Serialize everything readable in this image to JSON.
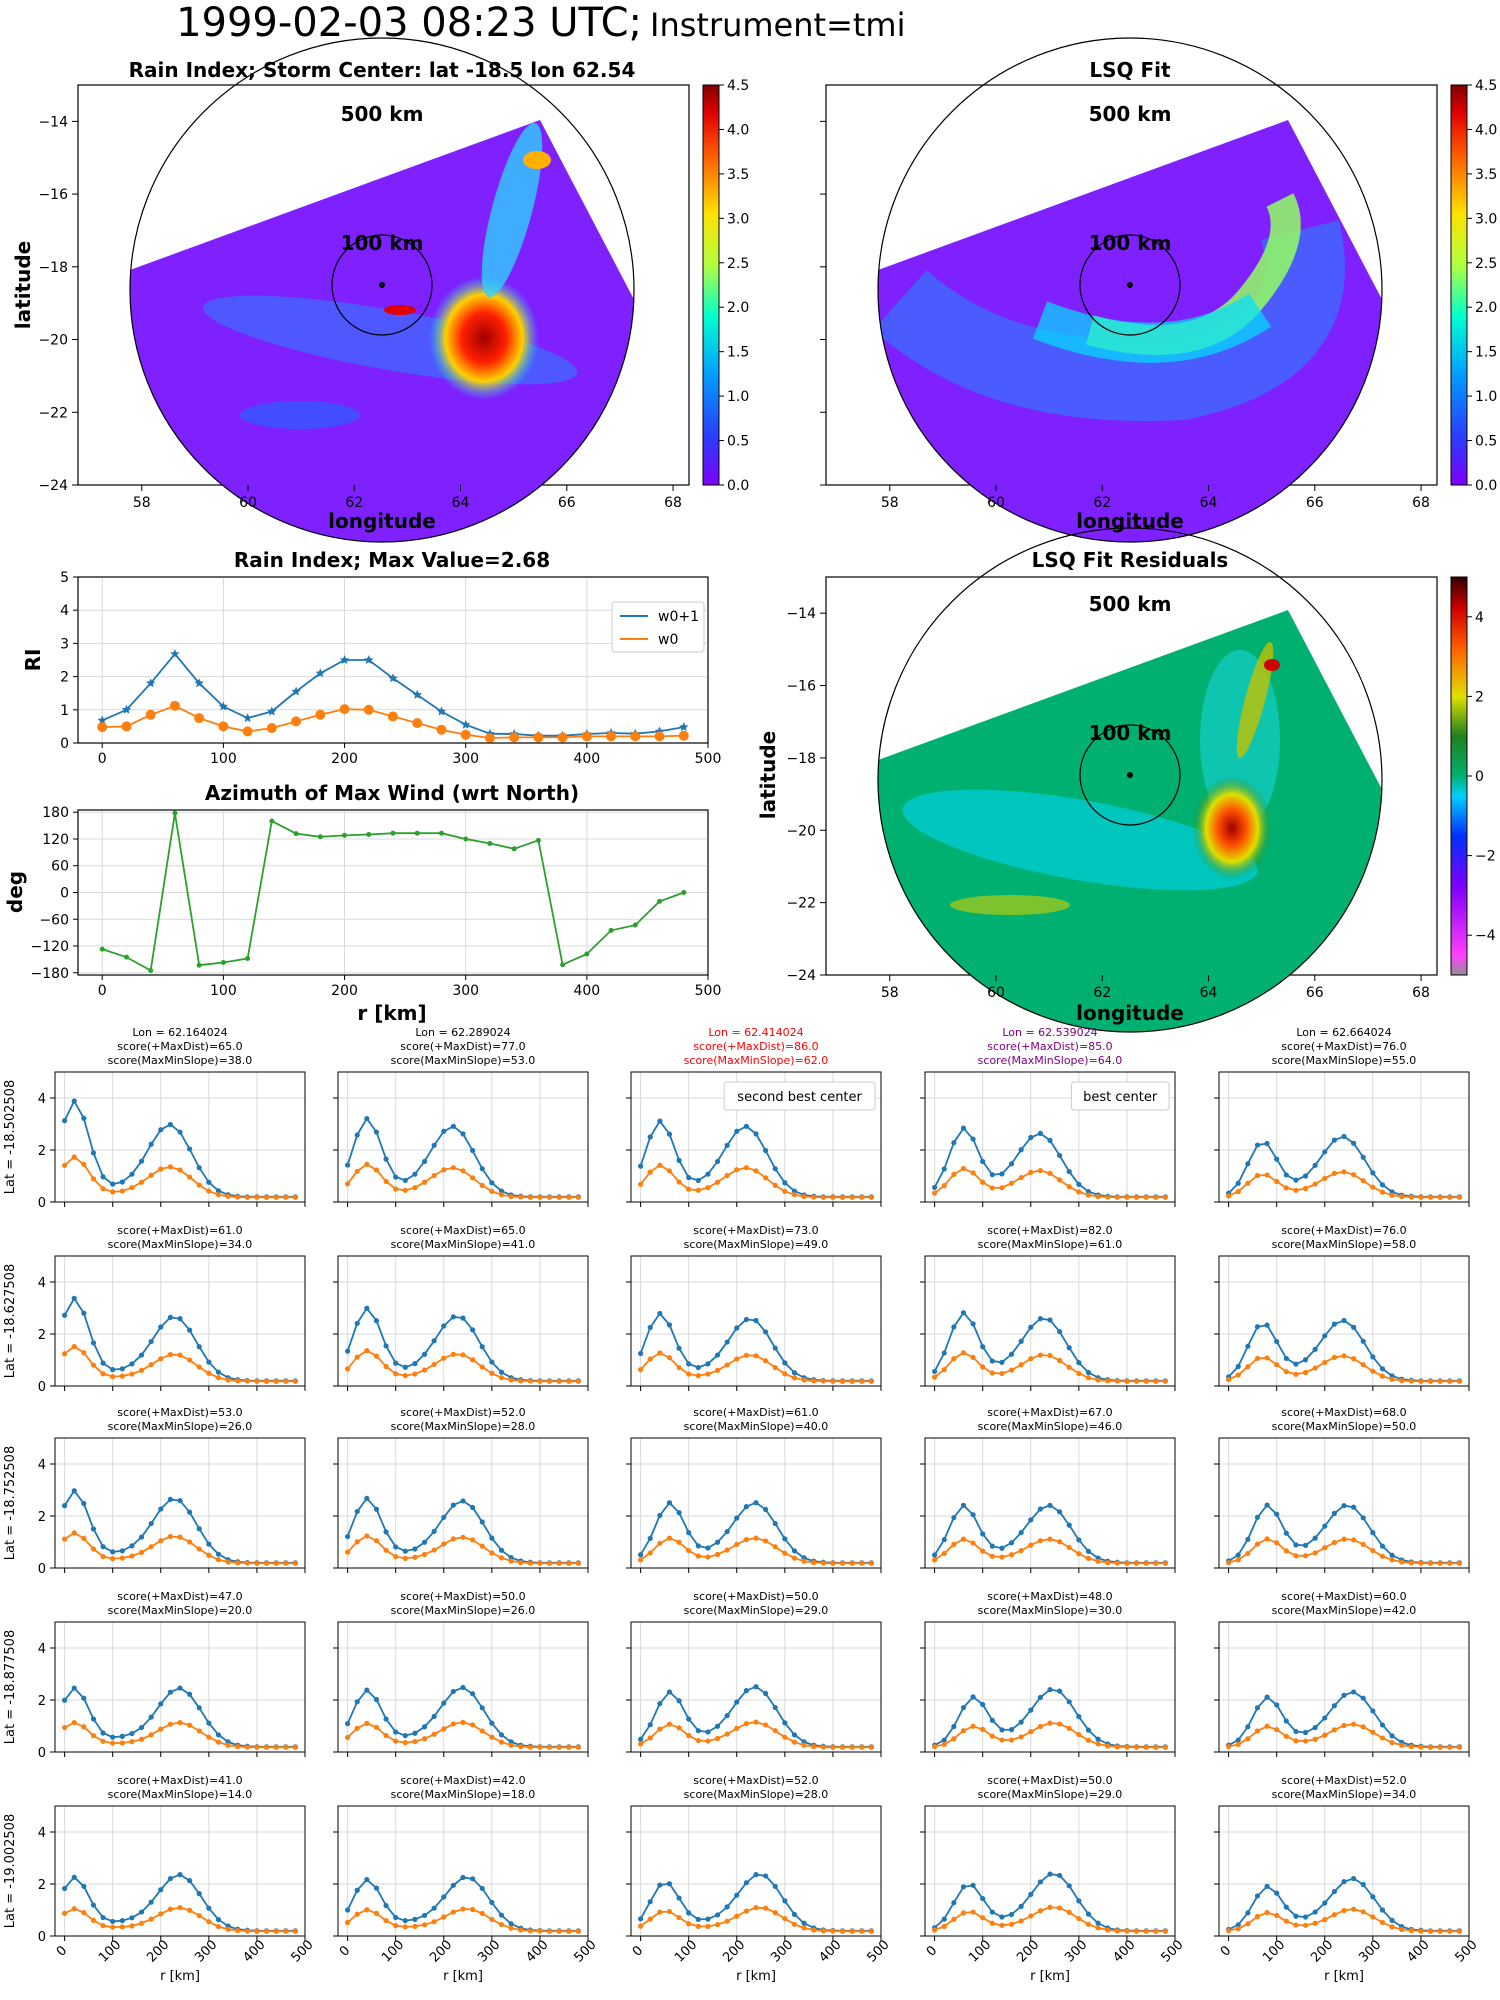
{
  "header": {
    "date_text": "1999-02-03 08:23 UTC;",
    "instrument_text": "Instrument=tmi"
  },
  "colors": {
    "series_w0p1": "#1f77b4",
    "series_w0": "#ff7f0e",
    "azimuth": "#2ca02c",
    "grid": "#d9d9d9",
    "second_best": "#ff0000",
    "best": "#800080"
  },
  "chart_data": [
    {
      "id": "rain-index-map",
      "type": "heatmap",
      "title": "Rain Index; Storm Center: lat -18.5 lon 62.54",
      "xlabel": "longitude",
      "ylabel": "latitude",
      "xlim": [
        56.8,
        68.3
      ],
      "ylim": [
        -24,
        -13
      ],
      "xticks": [
        58,
        60,
        62,
        64,
        66,
        68
      ],
      "yticks": [
        -24,
        -22,
        -20,
        -18,
        -16,
        -14
      ],
      "colorbar": {
        "min": 0,
        "max": 4.5,
        "ticks": [
          "0.0",
          "0.5",
          "1.0",
          "1.5",
          "2.0",
          "2.5",
          "3.0",
          "3.5",
          "4.0",
          "4.5"
        ],
        "colormap": "jet"
      },
      "circles": [
        {
          "label": "500 km",
          "radius_km": 500
        },
        {
          "label": "100 km",
          "radius_km": 100
        }
      ],
      "center": {
        "lon": 62.54,
        "lat": -18.5
      },
      "rain_features": [
        {
          "lon": 64.4,
          "lat": -20.1,
          "value": 4.5
        },
        {
          "lon": 63.0,
          "lat": -19.2,
          "value": 4.0
        },
        {
          "lon": 64.8,
          "lat": -15.2,
          "value": 3.0
        },
        {
          "lon": 64.3,
          "lat": -16.5,
          "value": 1.8
        }
      ]
    },
    {
      "id": "lsq-fit-map",
      "type": "heatmap",
      "title": "LSQ Fit",
      "xlabel": "longitude",
      "ylabel": "",
      "xlim": [
        56.8,
        68.3
      ],
      "ylim": [
        -24,
        -13
      ],
      "xticks": [
        58,
        60,
        62,
        64,
        66,
        68
      ],
      "colorbar": {
        "min": 0,
        "max": 4.5,
        "ticks": [
          "0.0",
          "0.5",
          "1.0",
          "1.5",
          "2.0",
          "2.5",
          "3.0",
          "3.5",
          "4.0",
          "4.5"
        ],
        "colormap": "jet"
      },
      "circles": [
        {
          "label": "500 km",
          "radius_km": 500
        },
        {
          "label": "100 km",
          "radius_km": 100
        }
      ]
    },
    {
      "id": "rain-index-profile",
      "type": "line",
      "title": "Rain Index; Max Value=2.68",
      "xlabel": "",
      "ylabel": "RI",
      "xlim": [
        -20,
        500
      ],
      "ylim": [
        0,
        5
      ],
      "xticks": [
        0,
        100,
        200,
        300,
        400,
        500
      ],
      "yticks": [
        0,
        1,
        2,
        3,
        4,
        5
      ],
      "legend": "top-right",
      "x": [
        0,
        20,
        40,
        60,
        80,
        100,
        120,
        140,
        160,
        180,
        200,
        220,
        240,
        260,
        280,
        300,
        320,
        340,
        360,
        380,
        400,
        420,
        440,
        460,
        480
      ],
      "series": [
        {
          "name": "w0+1",
          "values": [
            0.68,
            1.0,
            1.8,
            2.68,
            1.8,
            1.1,
            0.75,
            0.95,
            1.55,
            2.1,
            2.5,
            2.5,
            1.95,
            1.45,
            0.95,
            0.55,
            0.28,
            0.27,
            0.22,
            0.22,
            0.27,
            0.3,
            0.28,
            0.35,
            0.48
          ]
        },
        {
          "name": "w0",
          "values": [
            0.48,
            0.5,
            0.85,
            1.12,
            0.75,
            0.5,
            0.35,
            0.45,
            0.65,
            0.85,
            1.02,
            1.0,
            0.8,
            0.6,
            0.4,
            0.25,
            0.15,
            0.17,
            0.17,
            0.17,
            0.2,
            0.2,
            0.2,
            0.2,
            0.22
          ]
        }
      ]
    },
    {
      "id": "azimuth-max-wind",
      "type": "line",
      "title": "Azimuth of Max Wind (wrt North)",
      "xlabel": "r [km]",
      "ylabel": "deg",
      "xlim": [
        -20,
        500
      ],
      "ylim": [
        -185,
        185
      ],
      "xticks": [
        0,
        100,
        200,
        300,
        400,
        500
      ],
      "yticks": [
        -180,
        -120,
        -60,
        0,
        60,
        120,
        180
      ],
      "x": [
        0,
        20,
        40,
        60,
        80,
        100,
        120,
        140,
        160,
        180,
        200,
        220,
        240,
        260,
        280,
        300,
        320,
        340,
        360,
        380,
        400,
        420,
        440,
        460,
        480
      ],
      "values": [
        -127,
        -145,
        -175,
        178,
        -163,
        -157,
        -148,
        160,
        132,
        125,
        128,
        130,
        133,
        133,
        133,
        120,
        110,
        98,
        117,
        -162,
        -138,
        -85,
        -73,
        -20,
        0
      ]
    },
    {
      "id": "lsq-fit-residuals",
      "type": "heatmap",
      "title": "LSQ Fit Residuals",
      "xlabel": "longitude",
      "ylabel": "latitude",
      "xlim": [
        56.8,
        68.3
      ],
      "ylim": [
        -24,
        -13
      ],
      "xticks": [
        58,
        60,
        62,
        64,
        66,
        68
      ],
      "yticks": [
        -24,
        -22,
        -20,
        -18,
        -16,
        -14
      ],
      "colorbar": {
        "min": -5,
        "max": 5,
        "ticks": [
          "−4",
          "−2",
          "0",
          "2",
          "4"
        ],
        "colormap": "diverging"
      },
      "circles": [
        {
          "label": "500 km",
          "radius_km": 500
        },
        {
          "label": "100 km",
          "radius_km": 100
        }
      ]
    },
    {
      "id": "center-grid",
      "type": "line",
      "xlabel": "r [km]",
      "ylim": [
        0,
        5
      ],
      "xlim": [
        -20,
        500
      ],
      "xticks": [
        0,
        100,
        200,
        300,
        400,
        500
      ],
      "yticks": [
        0,
        2,
        4
      ],
      "x": [
        0,
        20,
        40,
        60,
        80,
        100,
        120,
        140,
        160,
        180,
        200,
        220,
        240,
        260,
        280,
        300,
        320,
        340,
        360,
        380,
        400,
        420,
        440,
        460,
        480
      ],
      "columns": [
        {
          "lon_label": "Lon = 62.164024",
          "color": "black"
        },
        {
          "lon_label": "Lon = 62.289024",
          "color": "black"
        },
        {
          "lon_label": "Lon = 62.414024",
          "color": "red"
        },
        {
          "lon_label": "Lon = 62.539024",
          "color": "purple"
        },
        {
          "lon_label": "Lon = 62.664024",
          "color": "black"
        }
      ],
      "rows": [
        {
          "lat_label": "Lat = -18.502508"
        },
        {
          "lat_label": "Lat = -18.627508"
        },
        {
          "lat_label": "Lat = -18.752508"
        },
        {
          "lat_label": "Lat = -18.877508"
        },
        {
          "lat_label": "Lat = -19.002508"
        }
      ],
      "annotations": [
        {
          "row": 0,
          "col": 2,
          "text": "second best center"
        },
        {
          "row": 0,
          "col": 3,
          "text": "best center"
        }
      ],
      "panels": [
        [
          {
            "score1": "score(+MaxDist)=65.0",
            "score2": "score(MaxMinSlope)=38.0",
            "peaks": [
              20,
              220
            ],
            "a1": 3.8,
            "a2": 2.9
          },
          {
            "score1": "score(+MaxDist)=77.0",
            "score2": "score(MaxMinSlope)=53.0",
            "peaks": [
              40,
              220
            ],
            "a1": 3.1,
            "a2": 2.8
          },
          {
            "score1": "score(+MaxDist)=86.0",
            "score2": "score(MaxMinSlope)=62.0",
            "peaks": [
              40,
              220
            ],
            "a1": 3.0,
            "a2": 2.8
          },
          {
            "score1": "score(+MaxDist)=85.0",
            "score2": "score(MaxMinSlope)=64.0",
            "peaks": [
              60,
              220
            ],
            "a1": 2.7,
            "a2": 2.5
          },
          {
            "score1": "score(+MaxDist)=76.0",
            "score2": "score(MaxMinSlope)=55.0",
            "peaks": [
              70,
              240
            ],
            "a1": 2.2,
            "a2": 2.4
          }
        ],
        [
          {
            "score1": "score(+MaxDist)=61.0",
            "score2": "score(MaxMinSlope)=34.0",
            "peaks": [
              20,
              230
            ],
            "a1": 3.3,
            "a2": 2.6
          },
          {
            "score1": "score(+MaxDist)=65.0",
            "score2": "score(MaxMinSlope)=41.0",
            "peaks": [
              40,
              230
            ],
            "a1": 2.9,
            "a2": 2.6
          },
          {
            "score1": "score(+MaxDist)=73.0",
            "score2": "score(MaxMinSlope)=49.0",
            "peaks": [
              40,
              230
            ],
            "a1": 2.7,
            "a2": 2.5
          },
          {
            "score1": "score(+MaxDist)=82.0",
            "score2": "score(MaxMinSlope)=61.0",
            "peaks": [
              60,
              230
            ],
            "a1": 2.7,
            "a2": 2.5
          },
          {
            "score1": "score(+MaxDist)=76.0",
            "score2": "score(MaxMinSlope)=58.0",
            "peaks": [
              70,
              240
            ],
            "a1": 2.3,
            "a2": 2.4
          }
        ],
        [
          {
            "score1": "score(+MaxDist)=53.0",
            "score2": "score(MaxMinSlope)=26.0",
            "peaks": [
              20,
              230
            ],
            "a1": 2.9,
            "a2": 2.6
          },
          {
            "score1": "score(+MaxDist)=52.0",
            "score2": "score(MaxMinSlope)=28.0",
            "peaks": [
              40,
              240
            ],
            "a1": 2.6,
            "a2": 2.5
          },
          {
            "score1": "score(+MaxDist)=61.0",
            "score2": "score(MaxMinSlope)=40.0",
            "peaks": [
              60,
              240
            ],
            "a1": 2.4,
            "a2": 2.4
          },
          {
            "score1": "score(+MaxDist)=67.0",
            "score2": "score(MaxMinSlope)=46.0",
            "peaks": [
              60,
              240
            ],
            "a1": 2.3,
            "a2": 2.3
          },
          {
            "score1": "score(+MaxDist)=68.0",
            "score2": "score(MaxMinSlope)=50.0",
            "peaks": [
              80,
              250
            ],
            "a1": 2.3,
            "a2": 2.3
          }
        ],
        [
          {
            "score1": "score(+MaxDist)=47.0",
            "score2": "score(MaxMinSlope)=20.0",
            "peaks": [
              20,
              240
            ],
            "a1": 2.4,
            "a2": 2.4
          },
          {
            "score1": "score(+MaxDist)=50.0",
            "score2": "score(MaxMinSlope)=26.0",
            "peaks": [
              40,
              240
            ],
            "a1": 2.3,
            "a2": 2.4
          },
          {
            "score1": "score(+MaxDist)=50.0",
            "score2": "score(MaxMinSlope)=29.0",
            "peaks": [
              60,
              240
            ],
            "a1": 2.2,
            "a2": 2.4
          },
          {
            "score1": "score(+MaxDist)=48.0",
            "score2": "score(MaxMinSlope)=30.0",
            "peaks": [
              80,
              250
            ],
            "a1": 2.0,
            "a2": 2.3
          },
          {
            "score1": "score(+MaxDist)=60.0",
            "score2": "score(MaxMinSlope)=42.0",
            "peaks": [
              80,
              260
            ],
            "a1": 2.0,
            "a2": 2.2
          }
        ],
        [
          {
            "score1": "score(+MaxDist)=41.0",
            "score2": "score(MaxMinSlope)=14.0",
            "peaks": [
              20,
              240
            ],
            "a1": 2.2,
            "a2": 2.3
          },
          {
            "score1": "score(+MaxDist)=42.0",
            "score2": "score(MaxMinSlope)=18.0",
            "peaks": [
              40,
              250
            ],
            "a1": 2.1,
            "a2": 2.2
          },
          {
            "score1": "score(+MaxDist)=52.0",
            "score2": "score(MaxMinSlope)=28.0",
            "peaks": [
              50,
              250
            ],
            "a1": 2.0,
            "a2": 2.3
          },
          {
            "score1": "score(+MaxDist)=50.0",
            "score2": "score(MaxMinSlope)=29.0",
            "peaks": [
              70,
              250
            ],
            "a1": 1.9,
            "a2": 2.3
          },
          {
            "score1": "score(+MaxDist)=52.0",
            "score2": "score(MaxMinSlope)=34.0",
            "peaks": [
              80,
              260
            ],
            "a1": 1.8,
            "a2": 2.1
          }
        ]
      ]
    }
  ]
}
